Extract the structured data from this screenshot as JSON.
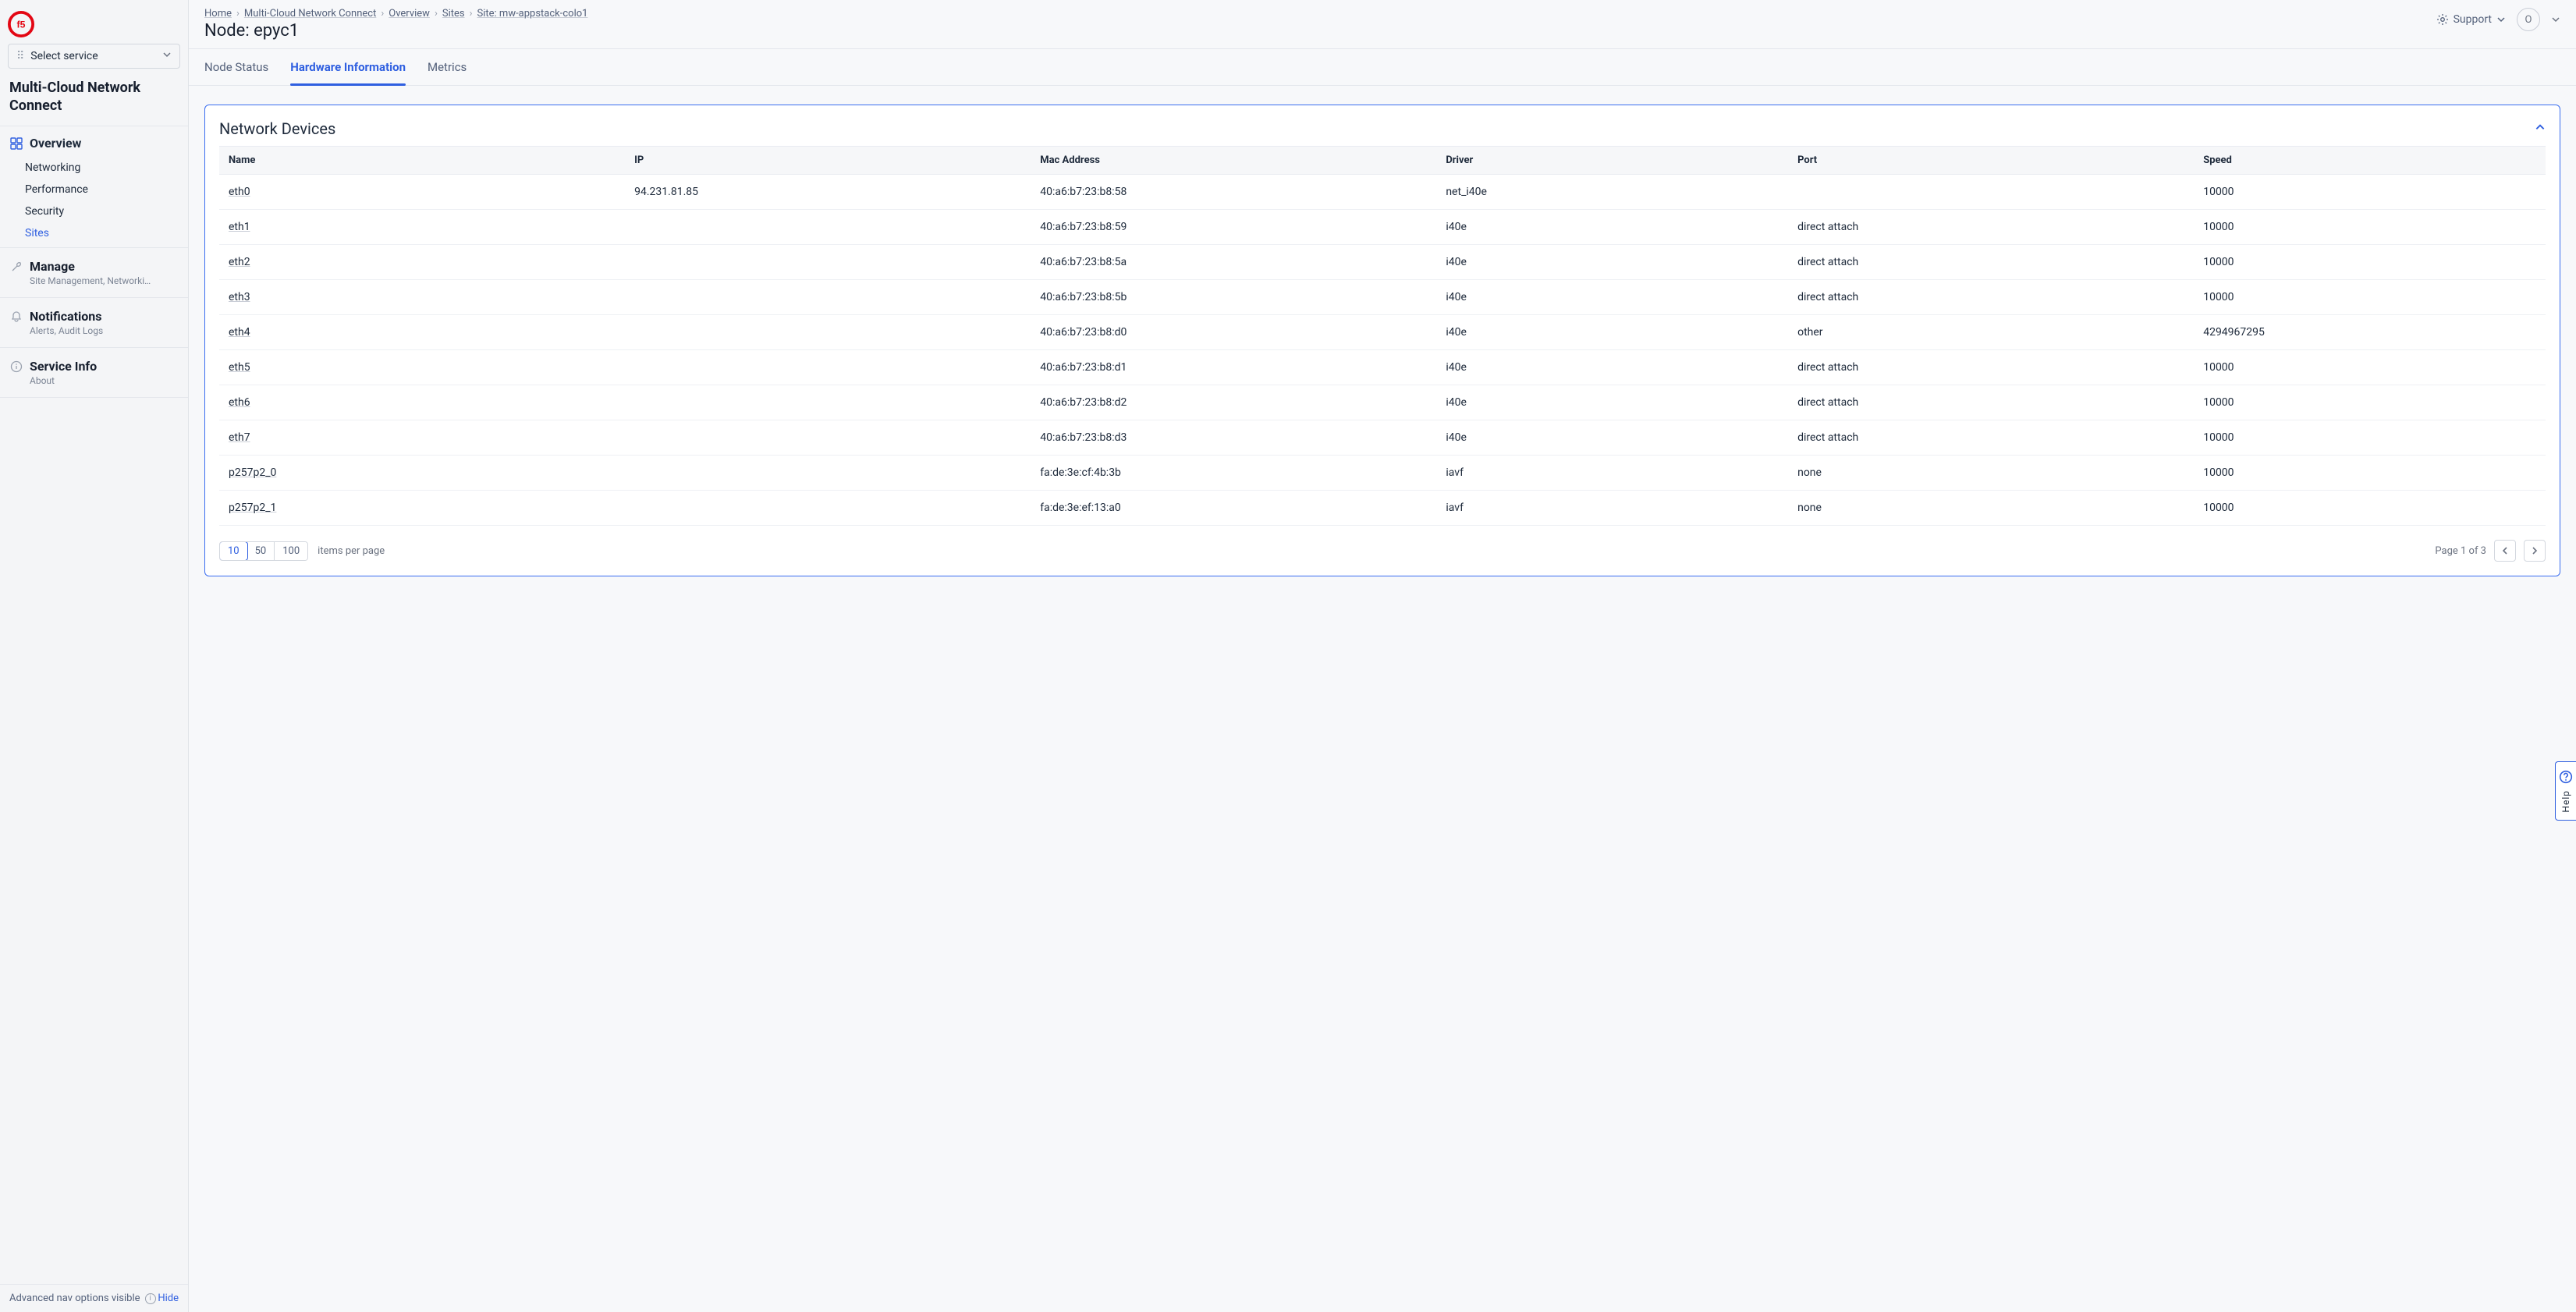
{
  "colors": {
    "accent": "#2f5fe0",
    "panel_border": "#3a6df0",
    "text_primary": "#1e2a3b",
    "text_secondary": "#53607a",
    "text_muted": "#6b7280",
    "bg_page": "#f7f8fa",
    "bg_sidebar": "#f4f5f7",
    "bg_table_header": "#f6f7f9",
    "border": "#e4e7ec",
    "row_border": "#eef0f4",
    "logo": "#e30613"
  },
  "logo": {
    "char": "f5"
  },
  "sidebar": {
    "service_select_label": "Select service",
    "section_title": "Multi-Cloud Network Connect",
    "overview": {
      "label": "Overview",
      "items": [
        "Networking",
        "Performance",
        "Security",
        "Sites"
      ],
      "active_index": 3
    },
    "groups": [
      {
        "label": "Manage",
        "desc": "Site Management, Networki…",
        "icon": "wrench"
      },
      {
        "label": "Notifications",
        "desc": "Alerts, Audit Logs",
        "icon": "bell"
      },
      {
        "label": "Service Info",
        "desc": "About",
        "icon": "info"
      }
    ],
    "footer_label": "Advanced nav options visible",
    "footer_action": "Hide"
  },
  "breadcrumb": [
    "Home",
    "Multi-Cloud Network Connect",
    "Overview",
    "Sites",
    "Site: mw-appstack-colo1"
  ],
  "page_title": "Node: epyc1",
  "topbar": {
    "support_label": "Support",
    "avatar_initial": "O"
  },
  "tabs": {
    "items": [
      "Node Status",
      "Hardware Information",
      "Metrics"
    ],
    "active_index": 1
  },
  "panel": {
    "title": "Network Devices",
    "table": {
      "columns": [
        "Name",
        "IP",
        "Mac Address",
        "Driver",
        "Port",
        "Speed"
      ],
      "column_widths_pct": [
        15,
        15,
        15,
        13,
        15,
        13
      ],
      "rows": [
        [
          "eth0",
          "94.231.81.85",
          "40:a6:b7:23:b8:58",
          "net_i40e",
          "",
          "10000"
        ],
        [
          "eth1",
          "",
          "40:a6:b7:23:b8:59",
          "i40e",
          "direct attach",
          "10000"
        ],
        [
          "eth2",
          "",
          "40:a6:b7:23:b8:5a",
          "i40e",
          "direct attach",
          "10000"
        ],
        [
          "eth3",
          "",
          "40:a6:b7:23:b8:5b",
          "i40e",
          "direct attach",
          "10000"
        ],
        [
          "eth4",
          "",
          "40:a6:b7:23:b8:d0",
          "i40e",
          "other",
          "4294967295"
        ],
        [
          "eth5",
          "",
          "40:a6:b7:23:b8:d1",
          "i40e",
          "direct attach",
          "10000"
        ],
        [
          "eth6",
          "",
          "40:a6:b7:23:b8:d2",
          "i40e",
          "direct attach",
          "10000"
        ],
        [
          "eth7",
          "",
          "40:a6:b7:23:b8:d3",
          "i40e",
          "direct attach",
          "10000"
        ],
        [
          "p257p2_0",
          "",
          "fa:de:3e:cf:4b:3b",
          "iavf",
          "none",
          "10000"
        ],
        [
          "p257p2_1",
          "",
          "fa:de:3e:ef:13:a0",
          "iavf",
          "none",
          "10000"
        ]
      ]
    },
    "pager": {
      "sizes": [
        "10",
        "50",
        "100"
      ],
      "active_size_index": 0,
      "label": "items per page",
      "page_text": "Page 1 of 3"
    }
  },
  "help_tab": {
    "label": "Help"
  }
}
